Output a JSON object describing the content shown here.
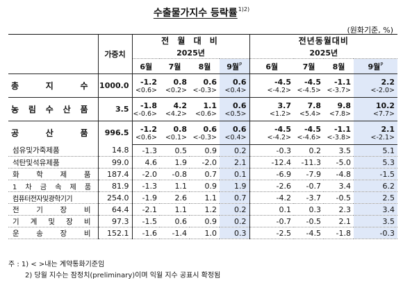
{
  "title": {
    "main": "수출물가지수 등락률",
    "sup": "1)2)"
  },
  "unit": "(원화기준, %)",
  "header": {
    "weight_label": "가중치",
    "group1": "전 월 대 비",
    "group2": "전년동월대비",
    "year": "2025년",
    "months": [
      "6월",
      "7월",
      "8월",
      "9월"
    ],
    "p_mark": "P"
  },
  "main_rows": [
    {
      "label": "총 지 수",
      "weight": "1000.0",
      "mom": [
        "-1.2",
        "0.8",
        "0.6",
        "0.6"
      ],
      "mom_contrib": [
        "<0.6>",
        "<0.2>",
        "<-0.3>",
        "<0.4>"
      ],
      "yoy": [
        "-4.5",
        "-4.5",
        "-1.1",
        "2.2"
      ],
      "yoy_contrib": [
        "<-4.2>",
        "<-4.5>",
        "<-3.7>",
        "<-2.0>"
      ]
    },
    {
      "label": "농 림 수 산 품",
      "weight": "3.5",
      "mom": [
        "-1.8",
        "4.2",
        "1.1",
        "0.6"
      ],
      "mom_contrib": [
        "<-0.6>",
        "<4.2>",
        "<0.6>",
        "<0.5>"
      ],
      "yoy": [
        "3.7",
        "7.8",
        "9.8",
        "10.2"
      ],
      "yoy_contrib": [
        "<1.2>",
        "<5.4>",
        "<7.8>",
        "<7.7>"
      ]
    },
    {
      "label": "공 산 품",
      "weight": "996.5",
      "mom": [
        "-1.2",
        "0.8",
        "0.6",
        "0.6"
      ],
      "mom_contrib": [
        "<0.6>",
        "<0.1>",
        "<-0.3>",
        "<0.4>"
      ],
      "yoy": [
        "-4.5",
        "-4.5",
        "-1.1",
        "2.1"
      ],
      "yoy_contrib": [
        "<-4.2>",
        "<-4.6>",
        "<-3.8>",
        "<-2.1>"
      ]
    }
  ],
  "sub_rows": [
    {
      "label": "섬유및가죽제품",
      "weight": "14.8",
      "mom": [
        "-1.3",
        "0.5",
        "0.9",
        "0.2"
      ],
      "yoy": [
        "-0.3",
        "0.2",
        "3.5",
        "5.1"
      ]
    },
    {
      "label": "석탄및석유제품",
      "weight": "99.0",
      "mom": [
        "4.6",
        "1.9",
        "-2.0",
        "2.1"
      ],
      "yoy": [
        "-12.4",
        "-11.3",
        "-5.0",
        "5.3"
      ]
    },
    {
      "label": "화 학 제 품",
      "weight": "187.4",
      "mom": [
        "-2.0",
        "-0.8",
        "0.7",
        "0.1"
      ],
      "yoy": [
        "-6.9",
        "-7.9",
        "-4.8",
        "-1.5"
      ]
    },
    {
      "label": "1 차 금 속 제 품",
      "weight": "81.9",
      "mom": [
        "-1.3",
        "1.1",
        "0.9",
        "1.9"
      ],
      "yoy": [
        "-2.6",
        "-0.7",
        "3.4",
        "6.2"
      ]
    },
    {
      "label": "컴퓨터전자및광학기기",
      "weight": "254.0",
      "mom": [
        "-1.9",
        "2.6",
        "1.1",
        "0.7"
      ],
      "yoy": [
        "-4.2",
        "-3.7",
        "-0.5",
        "2.5"
      ]
    },
    {
      "label": "전 기 장 비",
      "weight": "64.4",
      "mom": [
        "-2.1",
        "1.1",
        "1.2",
        "0.2"
      ],
      "yoy": [
        "0.1",
        "0.3",
        "2.3",
        "3.4"
      ]
    },
    {
      "label": "기 계 및 장 비",
      "weight": "97.3",
      "mom": [
        "-1.5",
        "0.6",
        "0.9",
        "0.2"
      ],
      "yoy": [
        "-0.7",
        "-0.5",
        "2.1",
        "3.5"
      ]
    },
    {
      "label": "운 송 장 비",
      "weight": "152.1",
      "mom": [
        "-1.6",
        "-1.4",
        "1.0",
        "0.3"
      ],
      "yoy": [
        "-2.5",
        "-4.5",
        "-1.8",
        "-0.3"
      ]
    }
  ],
  "notes": {
    "line1": "주 : 1) < >내는 계약통화기준임",
    "line2": "2) 당월 지수는 잠정치(preliminary)이며 익월 지수 공표시 확정됨"
  },
  "colors": {
    "highlight": "#dfe8f8"
  }
}
